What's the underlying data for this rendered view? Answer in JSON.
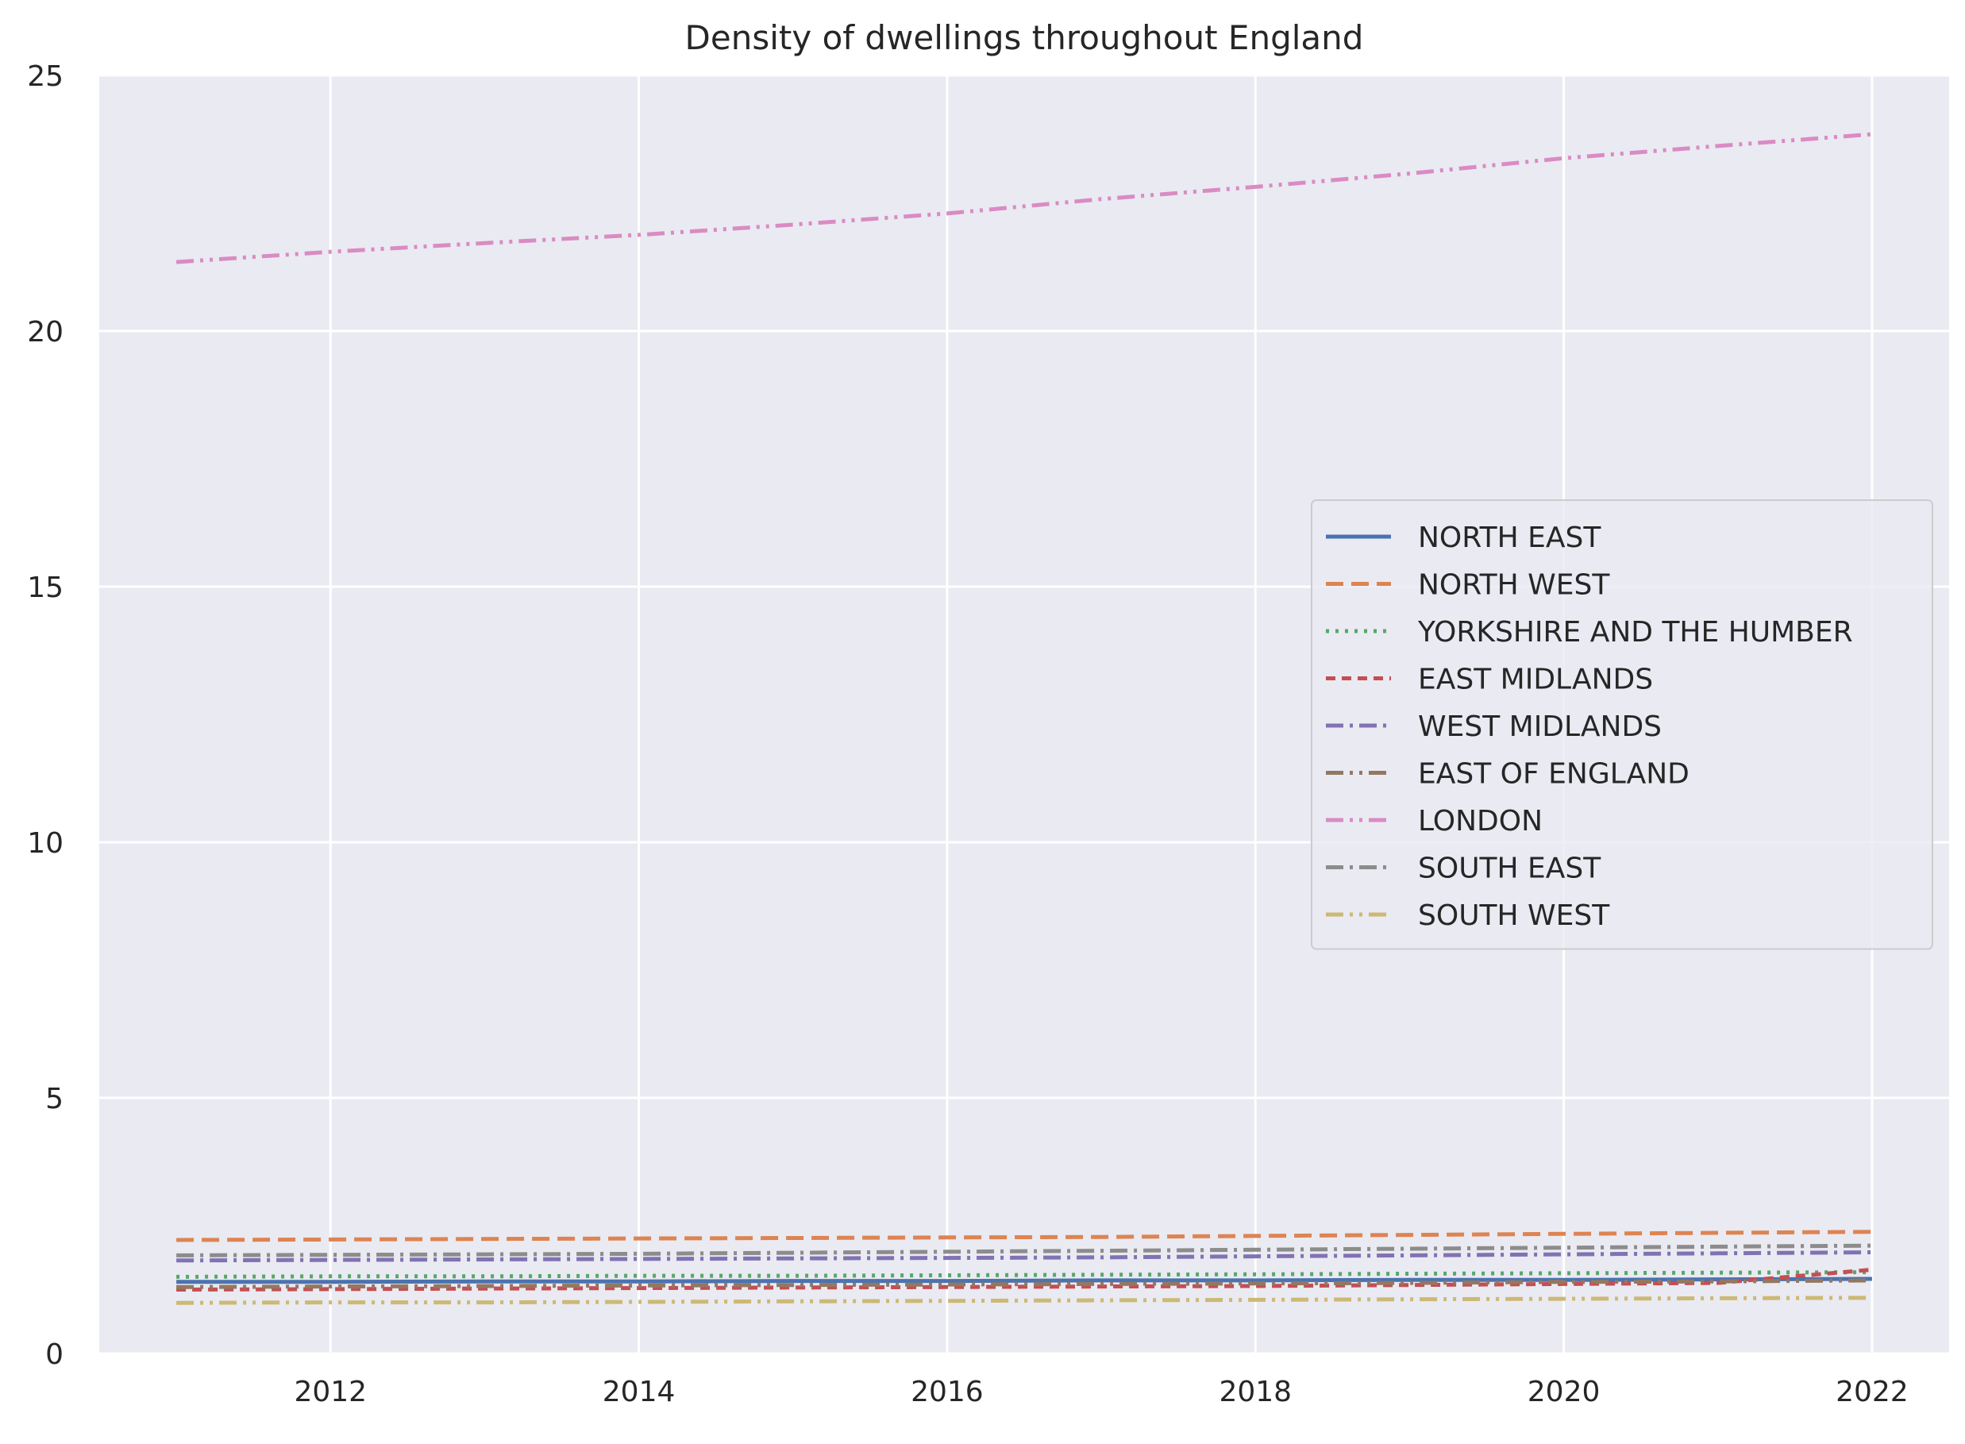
{
  "chart_data": {
    "type": "line",
    "title": "Density of dwellings throughout England",
    "xlabel": "",
    "ylabel": "",
    "xlim": [
      2010.5,
      2022.5
    ],
    "ylim": [
      0,
      25
    ],
    "x_ticks": [
      2012,
      2014,
      2016,
      2018,
      2020,
      2022
    ],
    "y_ticks": [
      0,
      5,
      10,
      15,
      20,
      25
    ],
    "grid": true,
    "legend_position": "center-right",
    "background": "#eaeaf2",
    "x": [
      2011,
      2012,
      2013,
      2014,
      2015,
      2016,
      2017,
      2018,
      2019,
      2020,
      2021,
      2022
    ],
    "series": [
      {
        "name": "NORTH EAST",
        "color": "#4c72b0",
        "dash": "solid",
        "values": [
          1.4,
          1.4,
          1.41,
          1.41,
          1.42,
          1.42,
          1.43,
          1.43,
          1.44,
          1.44,
          1.45,
          1.46
        ]
      },
      {
        "name": "NORTH WEST",
        "color": "#dd8452",
        "dash": "dashed",
        "values": [
          2.22,
          2.23,
          2.24,
          2.25,
          2.26,
          2.27,
          2.28,
          2.3,
          2.32,
          2.34,
          2.36,
          2.38
        ]
      },
      {
        "name": "YORKSHIRE AND THE HUMBER",
        "color": "#55a868",
        "dash": "dotted",
        "values": [
          1.5,
          1.51,
          1.51,
          1.52,
          1.52,
          1.53,
          1.54,
          1.55,
          1.56,
          1.57,
          1.58,
          1.59
        ]
      },
      {
        "name": "EAST MIDLANDS",
        "color": "#c44e52",
        "dash": "dash-short",
        "values": [
          1.25,
          1.26,
          1.27,
          1.28,
          1.29,
          1.3,
          1.31,
          1.32,
          1.34,
          1.36,
          1.38,
          1.64
        ]
      },
      {
        "name": "WEST MIDLANDS",
        "color": "#8172b3",
        "dash": "dashdot",
        "values": [
          1.82,
          1.83,
          1.84,
          1.85,
          1.86,
          1.87,
          1.88,
          1.9,
          1.92,
          1.94,
          1.96,
          1.98
        ]
      },
      {
        "name": "EAST OF ENGLAND",
        "color": "#937860",
        "dash": "dashdotdot",
        "values": [
          1.3,
          1.31,
          1.32,
          1.33,
          1.34,
          1.35,
          1.36,
          1.37,
          1.38,
          1.4,
          1.41,
          1.43
        ]
      },
      {
        "name": "LONDON",
        "color": "#da8bc3",
        "dash": "dashdotdot",
        "values": [
          21.35,
          21.55,
          21.72,
          21.88,
          22.08,
          22.3,
          22.58,
          22.82,
          23.08,
          23.38,
          23.62,
          23.85
        ]
      },
      {
        "name": "SOUTH EAST",
        "color": "#8c8c8c",
        "dash": "dashdot",
        "values": [
          1.92,
          1.93,
          1.94,
          1.95,
          1.97,
          1.99,
          2.01,
          2.03,
          2.05,
          2.07,
          2.09,
          2.11
        ]
      },
      {
        "name": "SOUTH WEST",
        "color": "#ccb974",
        "dash": "dashdotdot",
        "values": [
          0.99,
          1.0,
          1.0,
          1.01,
          1.02,
          1.03,
          1.04,
          1.05,
          1.06,
          1.07,
          1.08,
          1.09
        ]
      }
    ]
  }
}
